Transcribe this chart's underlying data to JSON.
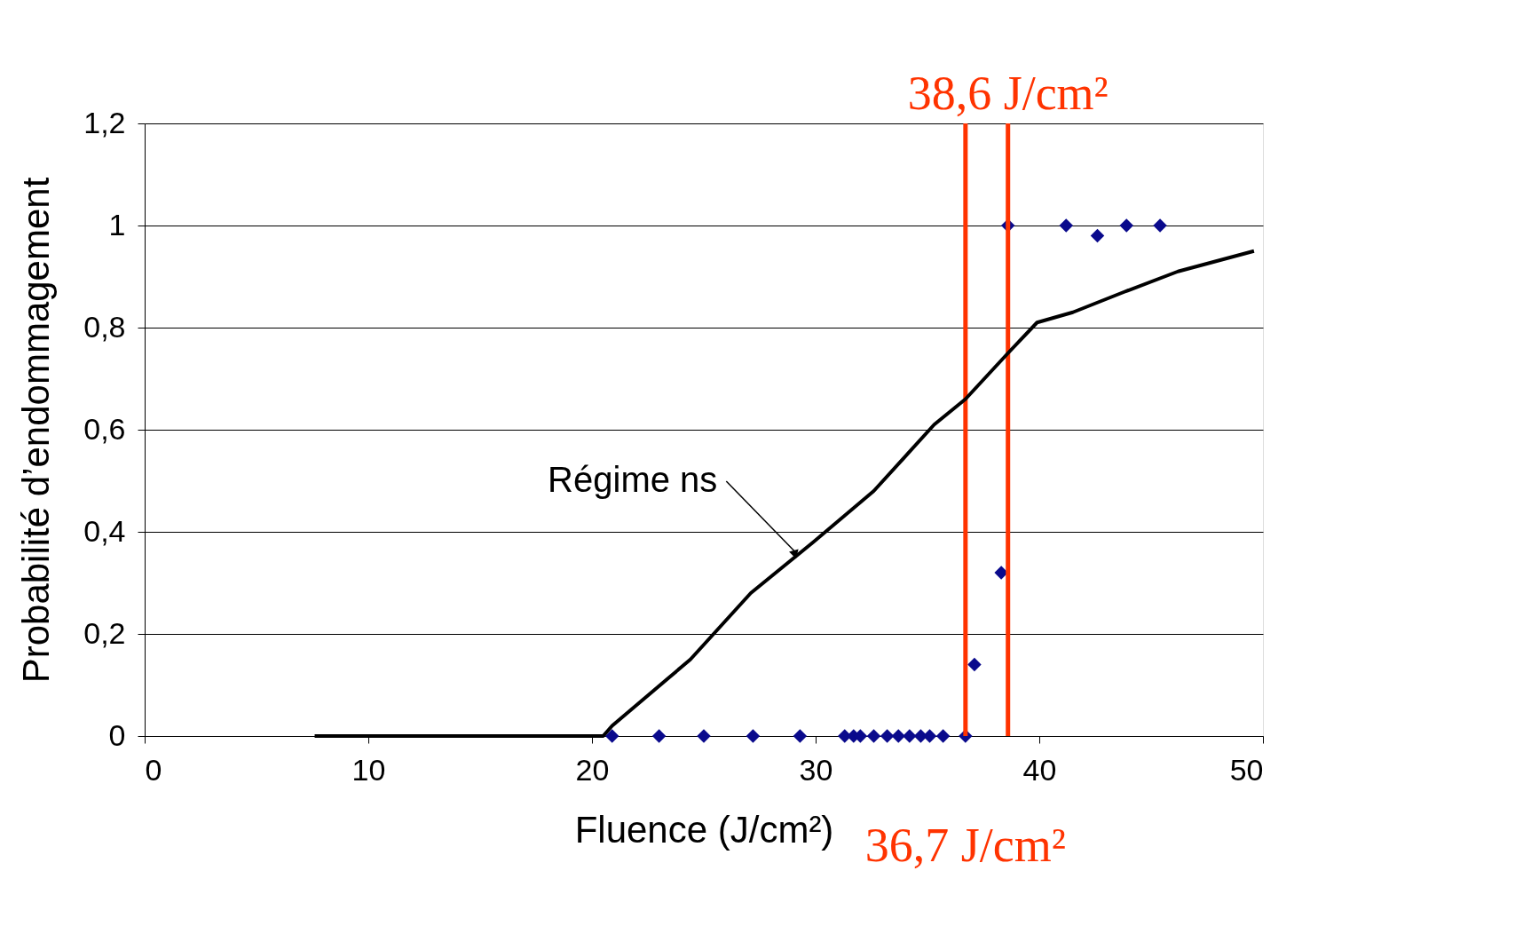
{
  "chart_data": {
    "type": "scatter",
    "xlabel": "Fluence (J/cm²)",
    "ylabel": "Probabilité d’endommagement",
    "series": [
      {
        "type": "scatter",
        "color": "#0a0a8c",
        "marker": "diamond",
        "x": [
          20.9,
          23.0,
          25.0,
          27.2,
          29.3,
          31.3,
          31.7,
          32.0,
          32.6,
          33.2,
          33.7,
          34.2,
          34.7,
          35.1,
          35.7,
          36.7,
          37.1,
          38.3,
          38.6,
          41.2,
          42.6,
          43.9,
          45.4
        ],
        "values": [
          0,
          0,
          0,
          0,
          0,
          0,
          0,
          0,
          0,
          0,
          0,
          0,
          0,
          0,
          0,
          0,
          0.14,
          0.32,
          1,
          1,
          0.98,
          1,
          1
        ]
      },
      {
        "type": "line",
        "color": "#000000",
        "marker": "none",
        "x": [
          7.6,
          15,
          20.5,
          20.9,
          24.4,
          27.1,
          29.9,
          32.6,
          35.3,
          36.7,
          38.6,
          39.9,
          41.5,
          43.8,
          46.2,
          49.6
        ],
        "values": [
          0,
          0,
          0,
          0.02,
          0.15,
          0.28,
          0.38,
          0.48,
          0.61,
          0.66,
          0.75,
          0.81,
          0.83,
          0.87,
          0.91,
          0.95
        ]
      }
    ],
    "annotations": [
      {
        "text": "Régime ns",
        "x": 29.1,
        "y": 0.36
      }
    ],
    "ref_lines": [
      {
        "axis": "x",
        "value": 36.7,
        "label": "36,7 J/cm²",
        "color": "#ff3300"
      },
      {
        "axis": "x",
        "value": 38.6,
        "label": "38,6 J/cm²",
        "color": "#ff3300"
      }
    ],
    "xlim": [
      0,
      50
    ],
    "xticks": [
      0,
      10,
      20,
      30,
      40,
      50
    ],
    "ylim": [
      0,
      1.2
    ],
    "yticks": [
      0,
      {
        "value": 0.2,
        "label": "0,2"
      },
      {
        "value": 0.4,
        "label": "0,4"
      },
      {
        "value": 0.6,
        "label": "0,6"
      },
      {
        "value": 0.8,
        "label": "0,8"
      },
      1,
      {
        "value": 1.2,
        "label": "1,2"
      }
    ],
    "grid": "y",
    "legend": false
  }
}
